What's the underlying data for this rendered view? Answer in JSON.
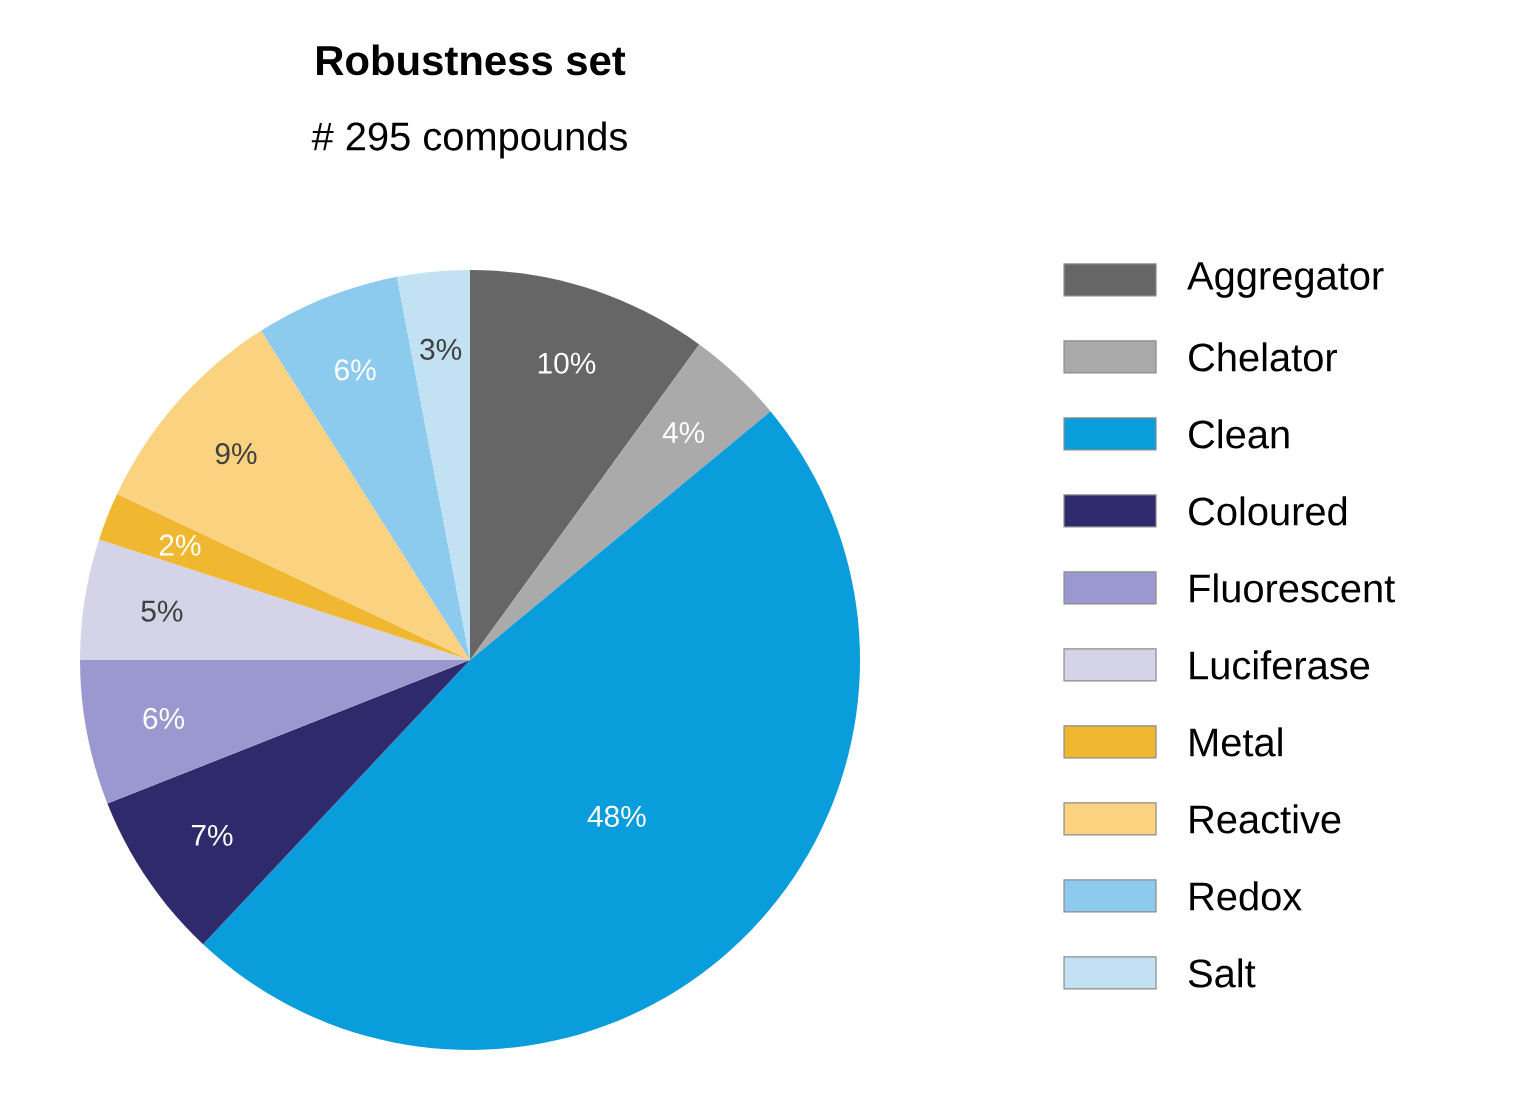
{
  "chart_data": {
    "type": "pie",
    "title": "Robustness set",
    "subtitle": "# 295 compounds",
    "categories": [
      "Aggregator",
      "Chelator",
      "Clean",
      "Coloured",
      "Fluorescent",
      "Luciferase",
      "Metal",
      "Reactive",
      "Redox",
      "Salt"
    ],
    "values": [
      10,
      4,
      48,
      7,
      6,
      5,
      2,
      9,
      6,
      3
    ],
    "value_labels": [
      "10%",
      "4%",
      "48%",
      "7%",
      "6%",
      "5%",
      "2%",
      "9%",
      "6%",
      "3%"
    ],
    "colors": [
      "#666666",
      "#aaaaaa",
      "#0a9ddb",
      "#2e2a6b",
      "#9b98cf",
      "#d4d3e8",
      "#f0b731",
      "#fbd27f",
      "#8dcbee",
      "#c2e2f3"
    ],
    "legend": "right"
  }
}
